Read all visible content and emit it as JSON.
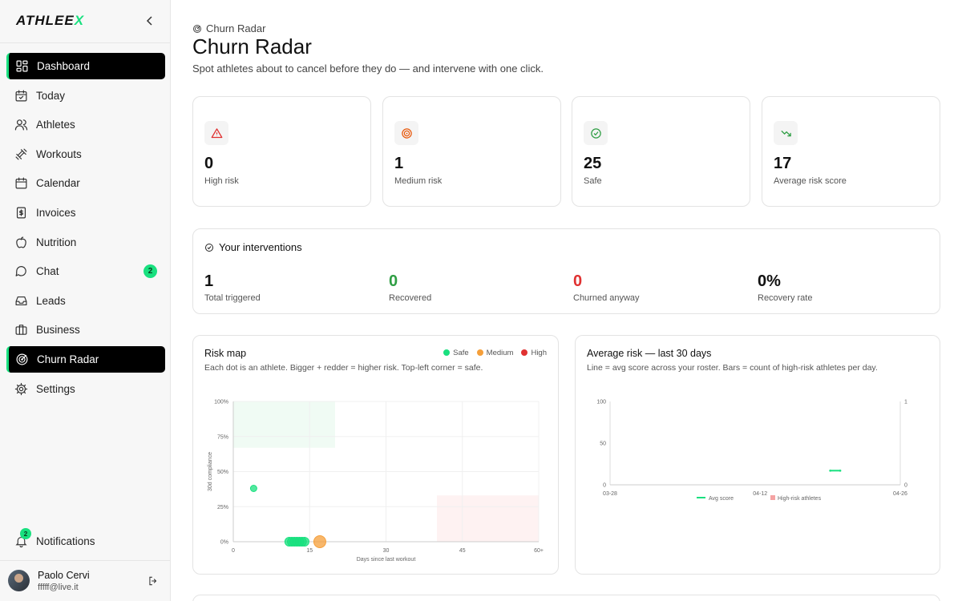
{
  "brand": {
    "text": "ATHLEE",
    "accent": "X"
  },
  "nav": [
    {
      "label": "Dashboard",
      "icon": "dashboard-icon",
      "active": true
    },
    {
      "label": "Today",
      "icon": "calendar-check-icon"
    },
    {
      "label": "Athletes",
      "icon": "users-icon"
    },
    {
      "label": "Workouts",
      "icon": "dumbbell-icon"
    },
    {
      "label": "Calendar",
      "icon": "calendar-icon"
    },
    {
      "label": "Invoices",
      "icon": "invoice-icon"
    },
    {
      "label": "Nutrition",
      "icon": "apple-icon"
    },
    {
      "label": "Chat",
      "icon": "chat-icon",
      "badge": "2"
    },
    {
      "label": "Leads",
      "icon": "inbox-icon"
    },
    {
      "label": "Business",
      "icon": "briefcase-icon"
    },
    {
      "label": "Churn Radar",
      "icon": "radar-icon",
      "active": true
    },
    {
      "label": "Settings",
      "icon": "gear-icon"
    }
  ],
  "notifications": {
    "label": "Notifications",
    "badge": "2"
  },
  "user": {
    "name": "Paolo Cervi",
    "email": "fffff@live.it"
  },
  "header": {
    "breadcrumb": "Churn Radar",
    "title": "Churn Radar",
    "subtitle": "Spot athletes about to cancel before they do — and intervene with one click."
  },
  "kpis": [
    {
      "value": "0",
      "label": "High risk",
      "icon": "alert-triangle-icon",
      "color": "#e03131",
      "bg": "#f4f4f4"
    },
    {
      "value": "1",
      "label": "Medium risk",
      "icon": "target-icon",
      "color": "#e8590c",
      "bg": "#f4f4f4"
    },
    {
      "value": "25",
      "label": "Safe",
      "icon": "check-circle-icon",
      "color": "#2f9e44",
      "bg": "#f4f4f4"
    },
    {
      "value": "17",
      "label": "Average risk score",
      "icon": "trending-down-icon",
      "color": "#2f9e44",
      "bg": "#f4f4f4"
    }
  ],
  "interventions": {
    "title": "Your interventions",
    "stats": [
      {
        "value": "1",
        "label": "Total triggered",
        "color": "#111111"
      },
      {
        "value": "0",
        "label": "Recovered",
        "color": "#2f9e44"
      },
      {
        "value": "0",
        "label": "Churned anyway",
        "color": "#e03131"
      },
      {
        "value": "0%",
        "label": "Recovery rate",
        "color": "#111111"
      }
    ]
  },
  "risk_map": {
    "title": "Risk map",
    "subtitle": "Each dot is an athlete. Bigger + redder = higher risk. Top-left corner = safe.",
    "legend": [
      {
        "label": "Safe",
        "color": "#19e07f"
      },
      {
        "label": "Medium",
        "color": "#f59f3a"
      },
      {
        "label": "High",
        "color": "#e03131"
      }
    ]
  },
  "avg_risk": {
    "title": "Average risk — last 30 days",
    "subtitle": "Line = avg score across your roster. Bars = count of high-risk athletes per day."
  },
  "chart_data": [
    {
      "type": "scatter",
      "xlabel": "Days since last workout",
      "ylabel": "30d compliance",
      "xlim": [
        0,
        60
      ],
      "ylim": [
        0,
        100
      ],
      "x_ticks": [
        "0",
        "15",
        "30",
        "45",
        "60+"
      ],
      "y_ticks": [
        "0%",
        "25%",
        "50%",
        "75%",
        "100%"
      ],
      "points": [
        {
          "x": 4,
          "y": 38,
          "risk": "safe"
        },
        {
          "x": 11,
          "y": 0,
          "risk": "safe"
        },
        {
          "x": 11.5,
          "y": 0,
          "risk": "safe"
        },
        {
          "x": 12,
          "y": 0,
          "risk": "safe"
        },
        {
          "x": 12.5,
          "y": 0,
          "risk": "safe"
        },
        {
          "x": 13,
          "y": 0,
          "risk": "safe"
        },
        {
          "x": 13.5,
          "y": 0,
          "risk": "safe"
        },
        {
          "x": 14,
          "y": 0,
          "risk": "safe"
        },
        {
          "x": 17,
          "y": 0,
          "risk": "medium"
        }
      ]
    },
    {
      "type": "line",
      "x_ticks": [
        "03-28",
        "04-12",
        "04-26"
      ],
      "y_ticks_left": [
        "0",
        "50",
        "100"
      ],
      "y_ticks_right": [
        "0",
        "1"
      ],
      "ylim": [
        0,
        100
      ],
      "y2lim": [
        0,
        1
      ],
      "series": [
        {
          "name": "Avg score",
          "color": "#19e07f",
          "points": [
            {
              "x": "04-19",
              "y": 17
            },
            {
              "x": "04-20",
              "y": 17
            }
          ]
        },
        {
          "name": "High-risk athletes",
          "color": "#f5a3a3",
          "points": []
        }
      ]
    }
  ]
}
